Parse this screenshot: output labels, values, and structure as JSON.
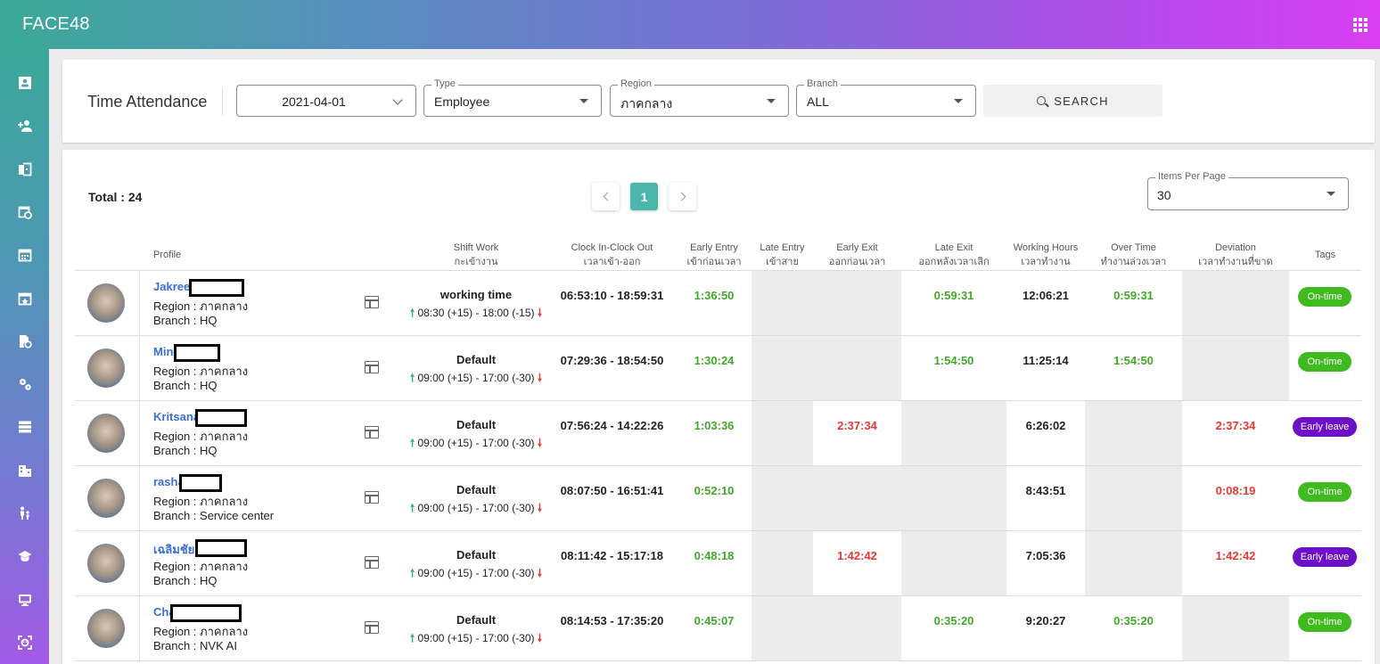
{
  "app": {
    "brand": "FACE48"
  },
  "sidebar": {
    "icons": [
      "contact-card-icon",
      "add-person-icon",
      "door-exit-icon",
      "calendar-clock-icon",
      "calendar-icon",
      "calendar-star-icon",
      "document-clock-icon",
      "settings-gear-icon",
      "stack-layers-icon",
      "building-icon",
      "family-icon",
      "graduation-cap-icon",
      "monitor-icon",
      "face-scan-icon"
    ]
  },
  "filters": {
    "title": "Time Attendance",
    "date": "2021-04-01",
    "type_label": "Type",
    "type_value": "Employee",
    "region_label": "Region",
    "region_value": "ภาคกลาง",
    "branch_label": "Branch",
    "branch_value": "ALL",
    "search_label": "SEARCH"
  },
  "table": {
    "total": "Total : 24",
    "page": "1",
    "items_per_page_label": "Items Per Page",
    "items_per_page": "30",
    "headers": {
      "profile": "Profile",
      "shift_work": "Shift Work",
      "shift_work_th": "กะเข้างาน",
      "clock": "Clock In-Clock Out",
      "clock_th": "เวลาเข้า-ออก",
      "early_entry": "Early Entry",
      "early_entry_th": "เข้าก่อนเวลา",
      "late_entry": "Late Entry",
      "late_entry_th": "เข้าสาย",
      "early_exit": "Early Exit",
      "early_exit_th": "ออกก่อนเวลา",
      "late_exit": "Late Exit",
      "late_exit_th": "ออกหลังเวลาเลิก",
      "working_hours": "Working Hours",
      "working_hours_th": "เวลาทำงาน",
      "over_time": "Over Time",
      "over_time_th": "ทำงานล่วงเวลา",
      "deviation": "Deviation",
      "deviation_th": "เวลาทำงานที่ขาด",
      "tags": "Tags"
    },
    "rows": [
      {
        "name": "Jakree",
        "region": "Region : ภาคกลาง",
        "branch": "Branch : HQ",
        "shift": "working time",
        "shift_time": "08:30 (+15) - 18:00 (-15)",
        "clock": "06:53:10 - 18:59:31",
        "early_entry": "1:36:50",
        "late_entry": "",
        "early_exit": "",
        "late_exit": "0:59:31",
        "working_hours": "12:06:21",
        "over_time": "0:59:31",
        "deviation": "",
        "tag": "On-time"
      },
      {
        "name": "Min",
        "region": "Region : ภาคกลาง",
        "branch": "Branch : HQ",
        "shift": "Default",
        "shift_time": "09:00 (+15) - 17:00 (-30)",
        "clock": "07:29:36 - 18:54:50",
        "early_entry": "1:30:24",
        "late_entry": "",
        "early_exit": "",
        "late_exit": "1:54:50",
        "working_hours": "11:25:14",
        "over_time": "1:54:50",
        "deviation": "",
        "tag": "On-time"
      },
      {
        "name": "Kritsana",
        "region": "Region : ภาคกลาง",
        "branch": "Branch : HQ",
        "shift": "Default",
        "shift_time": "09:00 (+15) - 17:00 (-30)",
        "clock": "07:56:24 - 14:22:26",
        "early_entry": "1:03:36",
        "late_entry": "",
        "early_exit": "2:37:34",
        "late_exit": "",
        "working_hours": "6:26:02",
        "over_time": "",
        "deviation": "2:37:34",
        "tag": "Early leave"
      },
      {
        "name": "rashane",
        "region": "Region : ภาคกลาง",
        "branch": "Branch : Service center",
        "shift": "Default",
        "shift_time": "09:00 (+15) - 17:00 (-30)",
        "clock": "08:07:50 - 16:51:41",
        "early_entry": "0:52:10",
        "late_entry": "",
        "early_exit": "",
        "late_exit": "",
        "working_hours": "8:43:51",
        "over_time": "",
        "deviation": "0:08:19",
        "tag": "On-time"
      },
      {
        "name": "เฉลิมชัย",
        "region": "Region : ภาคกลาง",
        "branch": "Branch : HQ",
        "shift": "Default",
        "shift_time": "09:00 (+15) - 17:00 (-30)",
        "clock": "08:11:42 - 15:17:18",
        "early_entry": "0:48:18",
        "late_entry": "",
        "early_exit": "1:42:42",
        "late_exit": "",
        "working_hours": "7:05:36",
        "over_time": "",
        "deviation": "1:42:42",
        "tag": "Early leave"
      },
      {
        "name": "Chawan",
        "region": "Region : ภาคกลาง",
        "branch": "Branch : NVK AI",
        "shift": "Default",
        "shift_time": "09:00 (+15) - 17:00 (-30)",
        "clock": "08:14:53 - 17:35:20",
        "early_entry": "0:45:07",
        "late_entry": "",
        "early_exit": "",
        "late_exit": "0:35:20",
        "working_hours": "9:20:27",
        "over_time": "0:35:20",
        "deviation": "",
        "tag": "On-time"
      }
    ]
  }
}
